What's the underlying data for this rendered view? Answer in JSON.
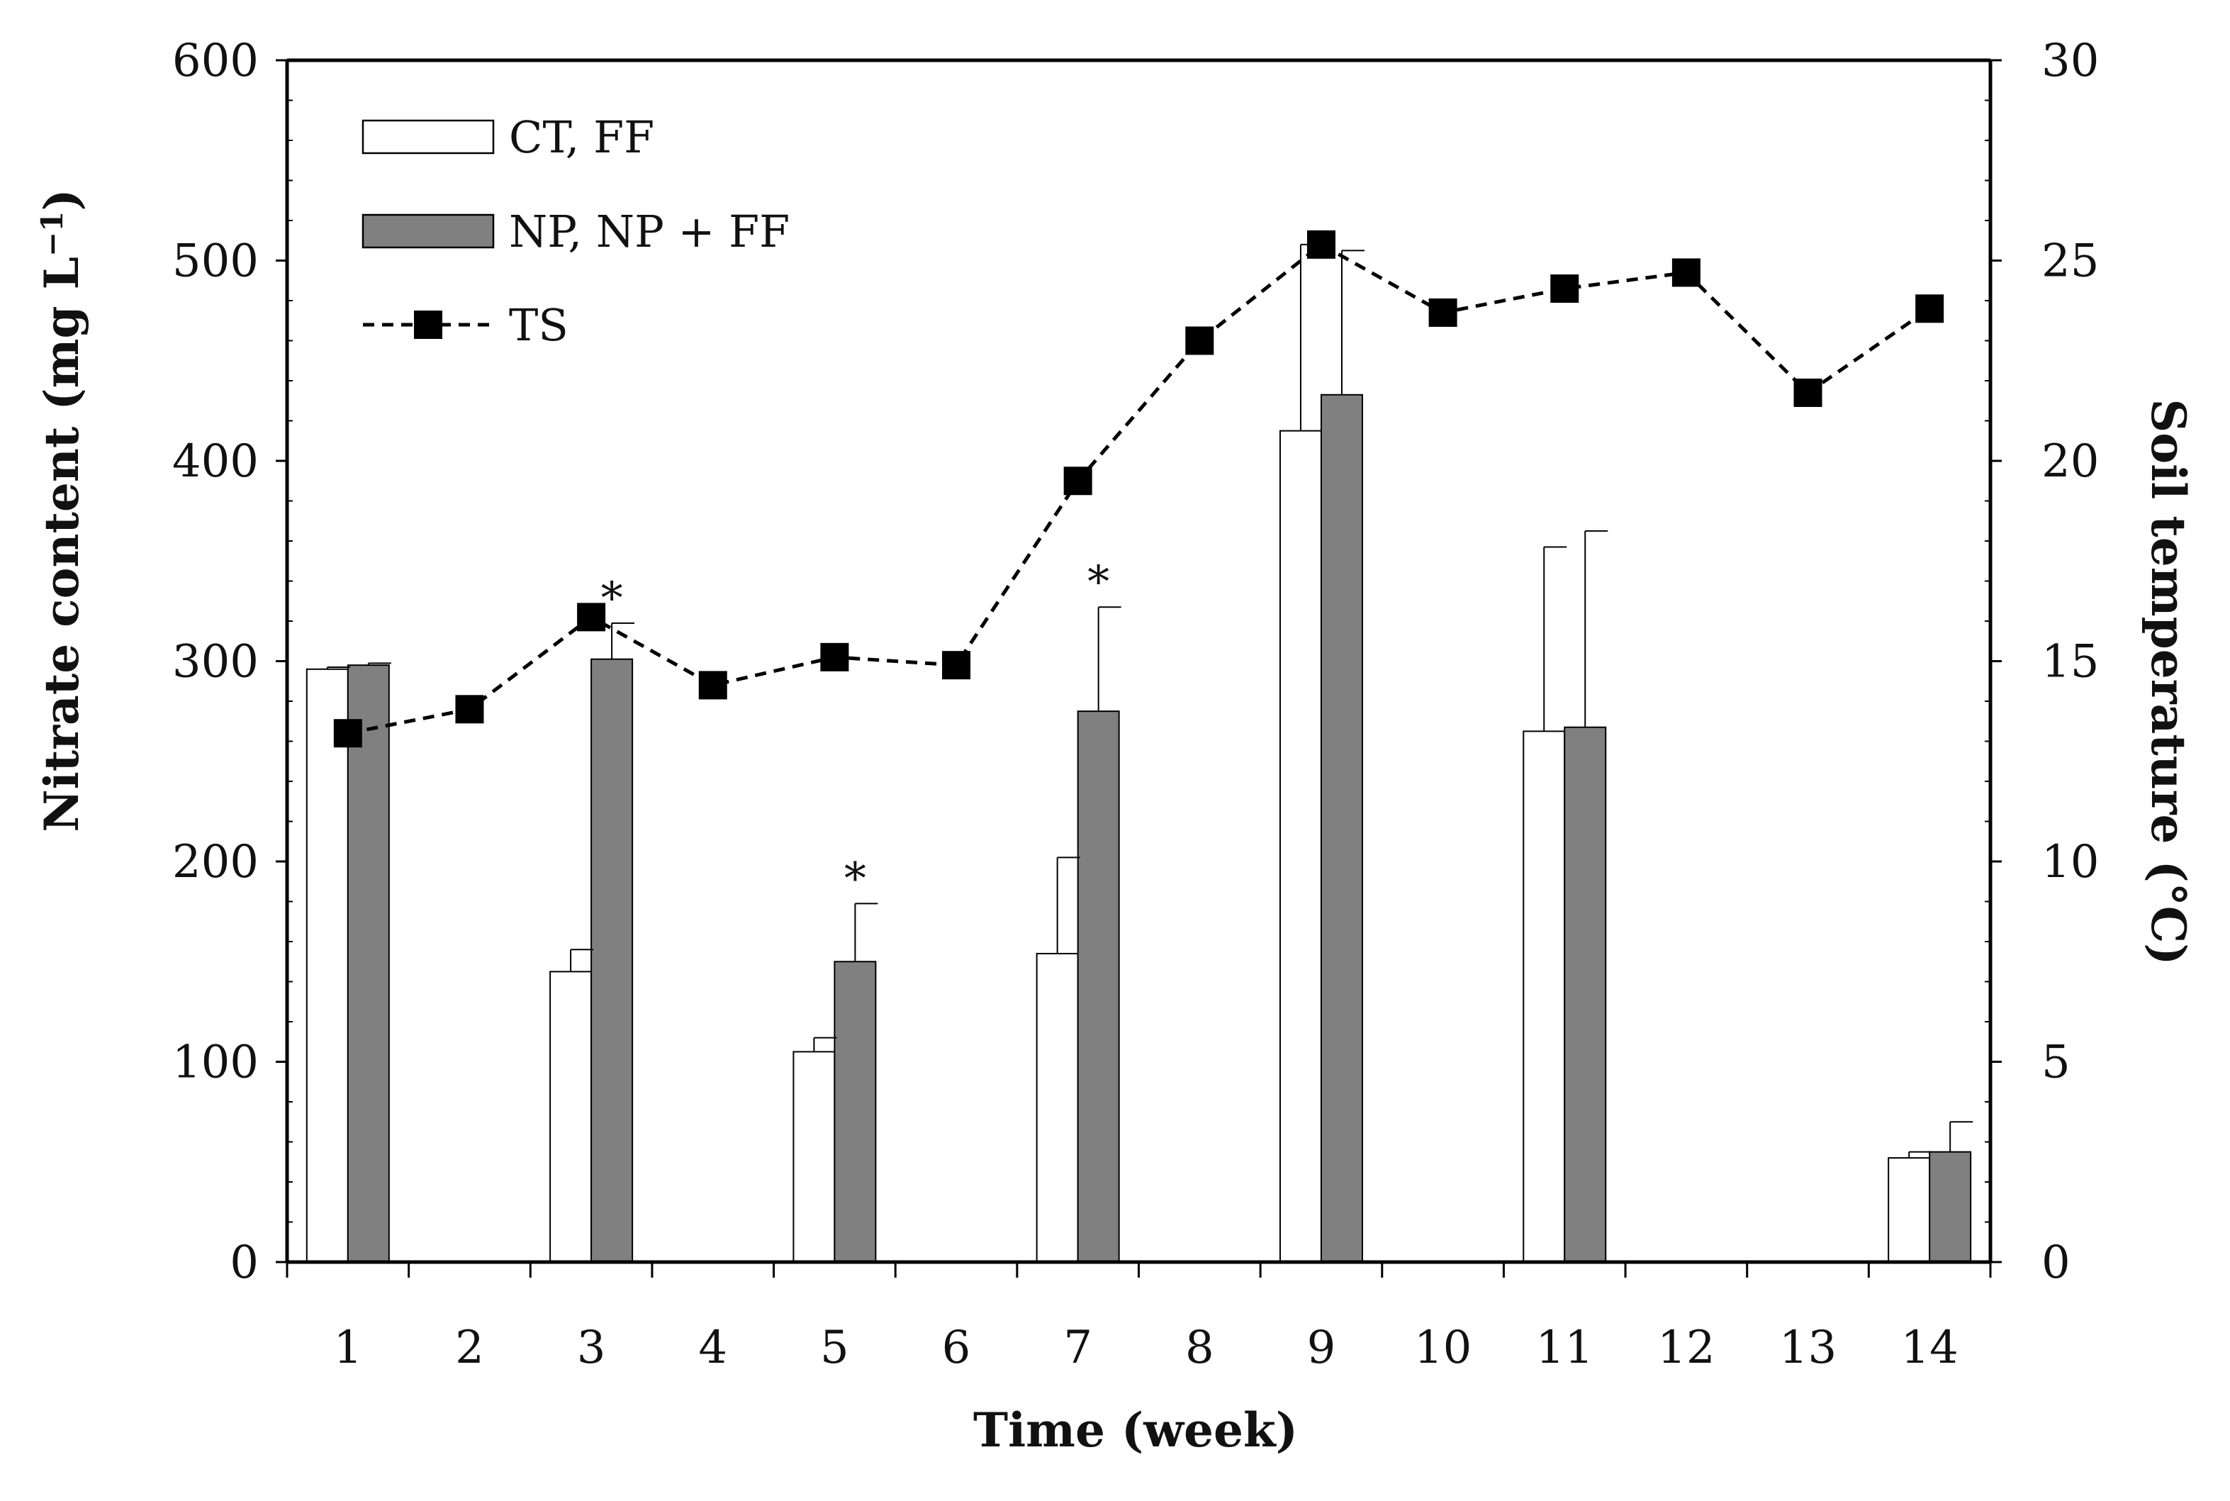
{
  "chart_data": {
    "type": "bar",
    "categories": [
      "1",
      "2",
      "3",
      "4",
      "5",
      "6",
      "7",
      "8",
      "9",
      "10",
      "11",
      "12",
      "13",
      "14"
    ],
    "xlabel": "Time (week)",
    "ylabel": "Nitrate content (mg L⁻¹)",
    "ylabel_main": "Nitrate content (mg L",
    "ylabel_sup": "−1",
    "ylabel_close": ")",
    "y2label": "Soil temperature (°C)",
    "ylim": [
      0,
      600
    ],
    "y2lim": [
      0,
      30
    ],
    "yticks": [
      "0",
      "100",
      "200",
      "300",
      "400",
      "500",
      "600"
    ],
    "y2ticks": [
      "0",
      "5",
      "10",
      "15",
      "20",
      "25",
      "30"
    ],
    "series": [
      {
        "name": "CT, FF",
        "kind": "bar",
        "color": "#ffffff",
        "values": [
          296,
          null,
          145,
          null,
          105,
          null,
          154,
          null,
          415,
          null,
          265,
          null,
          null,
          52
        ],
        "errors": [
          1,
          null,
          11,
          null,
          7,
          null,
          48,
          null,
          93,
          null,
          92,
          null,
          null,
          3
        ]
      },
      {
        "name": "NP, NP + FF",
        "kind": "bar",
        "color": "#808080",
        "values": [
          298,
          null,
          301,
          null,
          150,
          null,
          275,
          null,
          433,
          null,
          267,
          null,
          null,
          55
        ],
        "errors": [
          1,
          null,
          18,
          null,
          29,
          null,
          52,
          null,
          72,
          null,
          98,
          null,
          null,
          15
        ]
      },
      {
        "name": "TS",
        "kind": "line",
        "axis": "right",
        "color": "#000000",
        "values": [
          13.2,
          13.8,
          16.1,
          14.4,
          15.1,
          14.9,
          19.5,
          23.0,
          25.4,
          23.7,
          24.3,
          24.7,
          21.7,
          23.8
        ]
      }
    ],
    "annotations": [
      {
        "category": "3",
        "text": "*"
      },
      {
        "category": "5",
        "text": "*"
      },
      {
        "category": "7",
        "text": "*"
      }
    ]
  }
}
